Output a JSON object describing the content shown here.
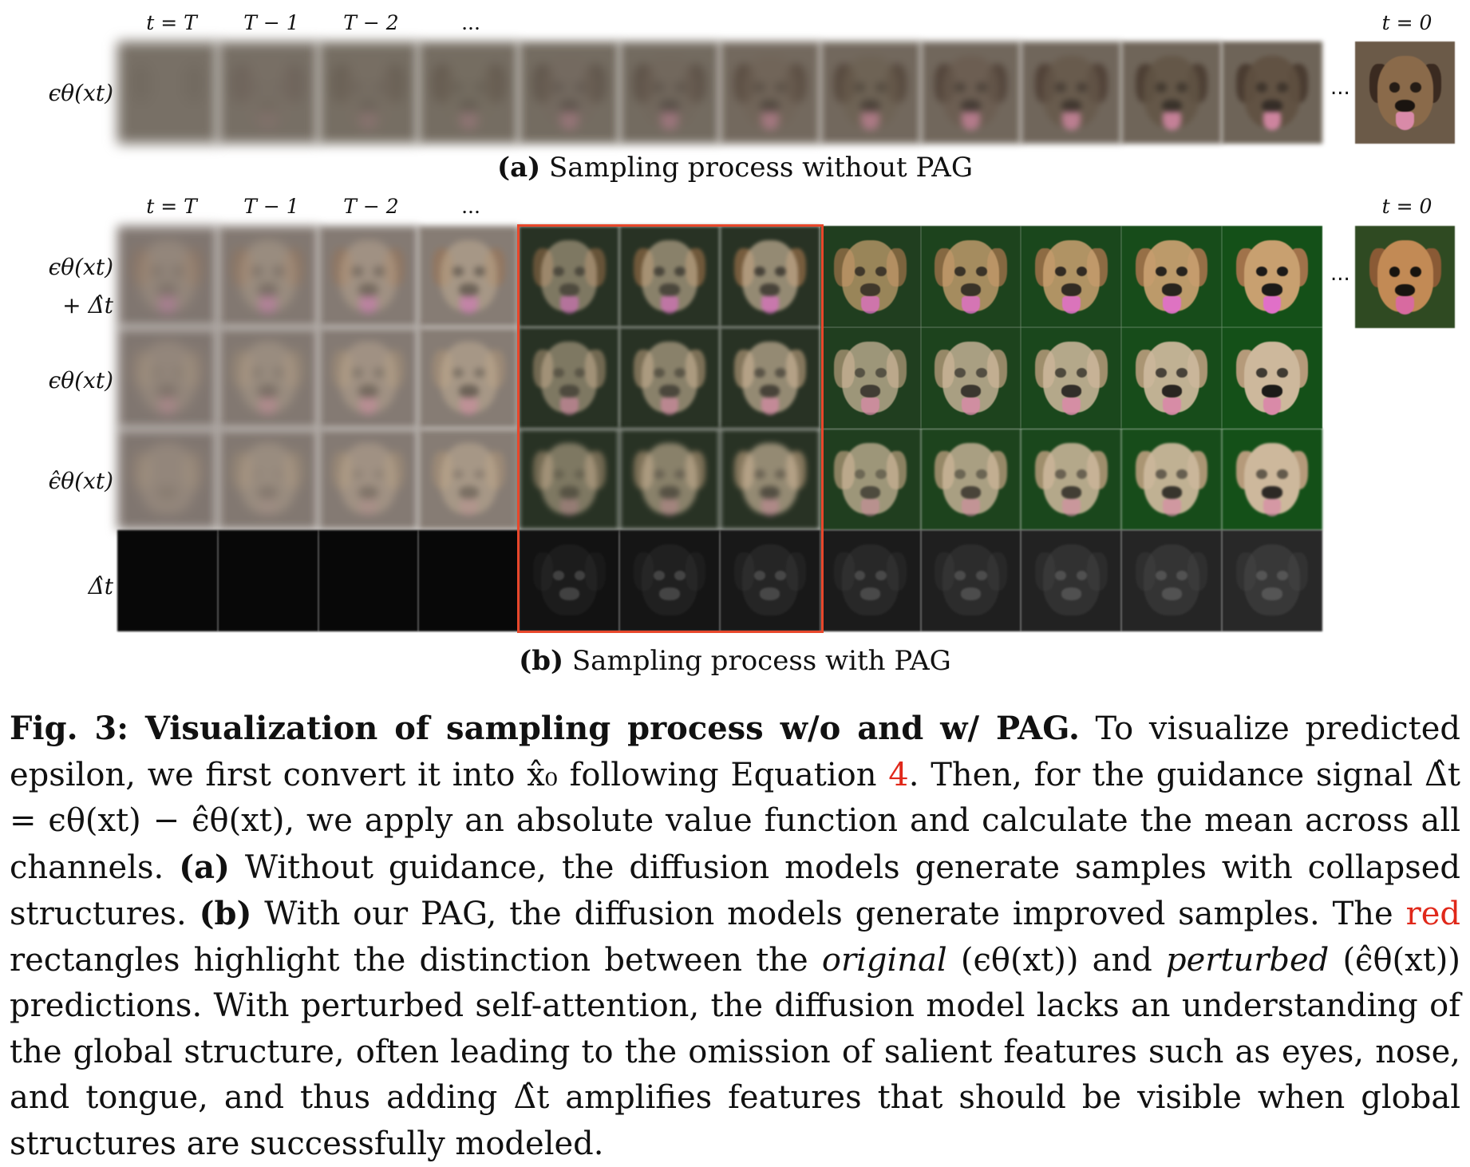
{
  "time_labels": [
    "t = T",
    "T − 1",
    "T − 2",
    "..."
  ],
  "final_time_label": "t = 0",
  "ellipsis": "...",
  "panel_a": {
    "row_label": "ϵθ(xt)",
    "caption_tag": "(a)",
    "caption_text": "Sampling process without PAG"
  },
  "panel_b": {
    "row_labels": [
      "ϵθ(xt)",
      "+ Δ̂t",
      "ϵθ(xt)",
      "ϵ̂θ(xt)",
      "Δ̂t"
    ],
    "caption_tag": "(b)",
    "caption_text": "Sampling process with PAG"
  },
  "colors": {
    "highlight_box": "#e8472b",
    "red_word": "#e0281a"
  },
  "caption": {
    "fig_label": "Fig. 3: Visualization of sampling process w/o and w/ PAG.",
    "s1": " To visualize predicted epsilon, we first convert it into x̂₀ following Equation ",
    "eq_ref": "4",
    "s2": ". Then, for the guidance signal Δ̂t = ϵθ(xt) − ϵ̂θ(xt), we apply an absolute value function and calculate the mean across all channels. ",
    "a_tag": "(a)",
    "s3": " Without guidance, the diffusion models generate samples with collapsed structures. ",
    "b_tag": "(b)",
    "s4": " With our PAG, the diffusion models generate improved samples. The ",
    "red_word": "red",
    "s5": " rectangles highlight the distinction between the ",
    "original": "original",
    "s6": " (ϵθ(xt)) and ",
    "perturbed": "perturbed",
    "s7": " (ϵ̂θ(xt)) predictions. With perturbed self-attention, the diffusion model lacks an understanding of the global structure, often leading to the omission of salient features such as eyes, nose, and tongue, and thus adding Δ̂t amplifies features that should be visible when global structures are successfully modeled."
  }
}
